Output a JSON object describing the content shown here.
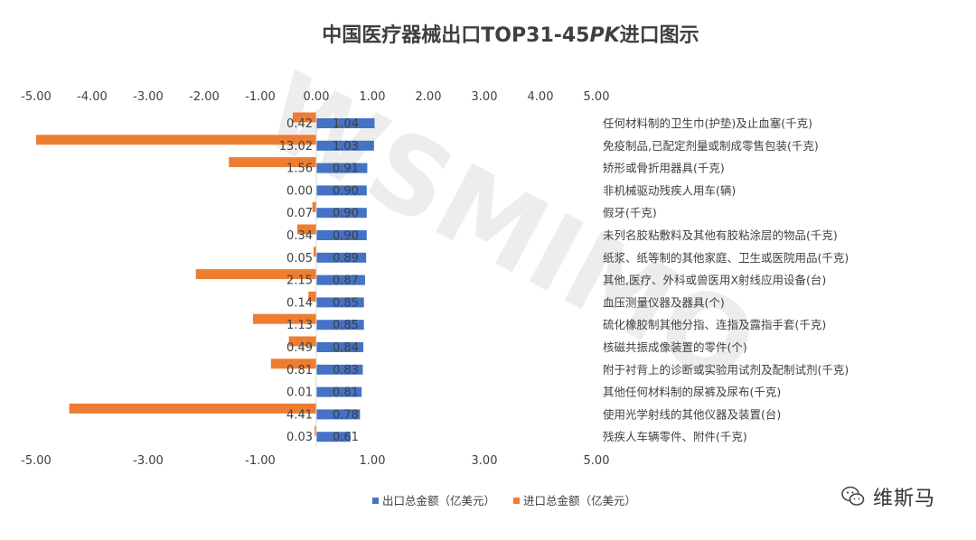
{
  "chart_data": {
    "type": "bar",
    "orientation": "horizontal",
    "title_parts": [
      "中国医疗器械出口TOP31-45",
      "PK",
      "进口图示"
    ],
    "top_axis_ticks": [
      "5.00",
      "4.00",
      "3.00",
      "2.00",
      "1.00",
      "0.00",
      "-1.00",
      "-2.00",
      "-3.00",
      "-4.00",
      "-5.00"
    ],
    "bottom_axis_ticks": [
      "-5.00",
      "-3.00",
      "-1.00",
      "1.00",
      "3.00",
      "5.00"
    ],
    "xlim": [
      -5,
      5
    ],
    "categories": [
      "任何材料制的卫生巾(护垫)及止血塞(千克)",
      "免疫制品,已配定剂量或制成零售包装(千克)",
      "矫形或骨折用器具(千克)",
      "非机械驱动残疾人用车(辆)",
      "假牙(千克)",
      "未列名胶粘敷料及其他有胶粘涂层的物品(千克)",
      "纸浆、纸等制的其他家庭、卫生或医院用品(千克)",
      "其他,医疗、外科或兽医用X射线应用设备(台)",
      "血压测量仪器及器具(个)",
      "硫化橡胶制其他分指、连指及露指手套(千克)",
      "核磁共振成像装置的零件(个)",
      "附于衬背上的诊断或实验用试剂及配制试剂(千克)",
      "其他任何材料制的尿裤及尿布(千克)",
      "使用光学射线的其他仪器及装置(台)",
      "残疾人车辆零件、附件(千克)"
    ],
    "series": [
      {
        "name": "出口总金额（亿美元）",
        "color": "#4472C4",
        "values": [
          1.04,
          1.03,
          0.91,
          0.9,
          0.9,
          0.9,
          0.89,
          0.87,
          0.85,
          0.85,
          0.84,
          0.83,
          0.81,
          0.78,
          0.61
        ],
        "labels": [
          "1.04",
          "1.03",
          "0.91",
          "0.90",
          "0.90",
          "0.90",
          "0.89",
          "0.87",
          "0.85",
          "0.85",
          "0.84",
          "0.83",
          "0.81",
          "0.78",
          "0.61"
        ]
      },
      {
        "name": "进口总金额（亿美元）",
        "color": "#ED7D31",
        "values": [
          0.42,
          13.02,
          1.56,
          0.0,
          0.07,
          0.34,
          0.05,
          2.15,
          0.14,
          1.13,
          0.49,
          0.81,
          0.01,
          4.41,
          0.03
        ],
        "labels": [
          "0.42",
          "13.02",
          "1.56",
          "0.00",
          "0.07",
          "0.34",
          "0.05",
          "2.15",
          "0.14",
          "1.13",
          "0.49",
          "0.81",
          "0.01",
          "4.41",
          "0.03"
        ]
      }
    ],
    "legend_position": "bottom-center",
    "grid": false
  },
  "watermark": "WSMIMO",
  "brand": {
    "name": "维斯马",
    "icon": "wechat-icon"
  }
}
